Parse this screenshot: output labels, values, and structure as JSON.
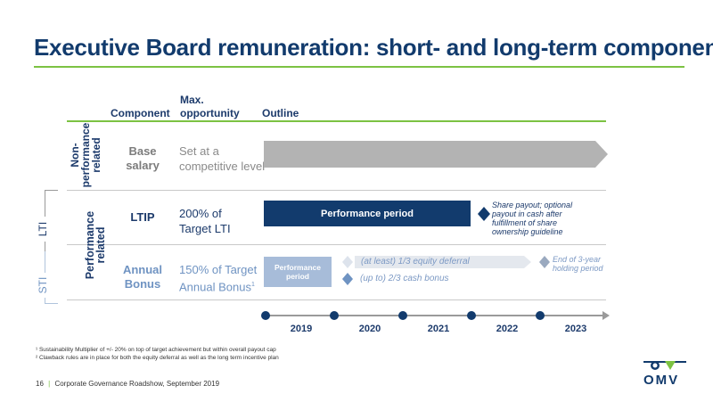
{
  "title": "Executive Board remuneration: short- and long-term components",
  "headers": {
    "component": "Component",
    "max_l1": "Max.",
    "max_l2": "opportunity",
    "outline": "Outline"
  },
  "groups": {
    "non_perf": [
      "Non-",
      "performance",
      "related"
    ],
    "perf": [
      "Performance",
      "related"
    ],
    "lti": "LTI",
    "sti": "STI"
  },
  "rows": {
    "base": {
      "comp_l1": "Base",
      "comp_l2": "salary",
      "opp_l1": "Set at a",
      "opp_l2": "competitive level"
    },
    "ltip": {
      "comp": "LTIP",
      "opp_l1": "200% of",
      "opp_l2": "Target LTI",
      "bar": "Performance period",
      "note": [
        "Share payout; optional",
        "payout in cash after",
        "fulfillment of share",
        "ownership guideline"
      ]
    },
    "bonus": {
      "comp_l1": "Annual",
      "comp_l2": "Bonus",
      "opp_l1": "150% of Target",
      "opp_l2": "Annual Bonus",
      "opp_sup": "1",
      "bar_l1": "Performance",
      "bar_l2": "period",
      "equity": "(at least) 1/3 equity deferral",
      "cash": "(up to) 2/3 cash bonus",
      "end_l1": "End of 3-year",
      "end_l2": "holding period"
    }
  },
  "years": [
    "2019",
    "2020",
    "2021",
    "2022",
    "2023"
  ],
  "footnotes": [
    "¹ Sustainability Multiplier of +/- 20% on top of target achievement but within overall payout cap",
    "² Clawback rules are in place for both the equity deferral as well as the long term incentive plan"
  ],
  "footer": {
    "page": "16",
    "text": "Corporate Governance Roadshow, September 2019"
  },
  "logo": {
    "text": "OMV"
  },
  "colors": {
    "navy": "#123b6d",
    "green": "#7cc242",
    "grey_bar": "#b3b3b3",
    "light_bar": "#e4e8ee",
    "grey_text": "#8a8a8a"
  }
}
